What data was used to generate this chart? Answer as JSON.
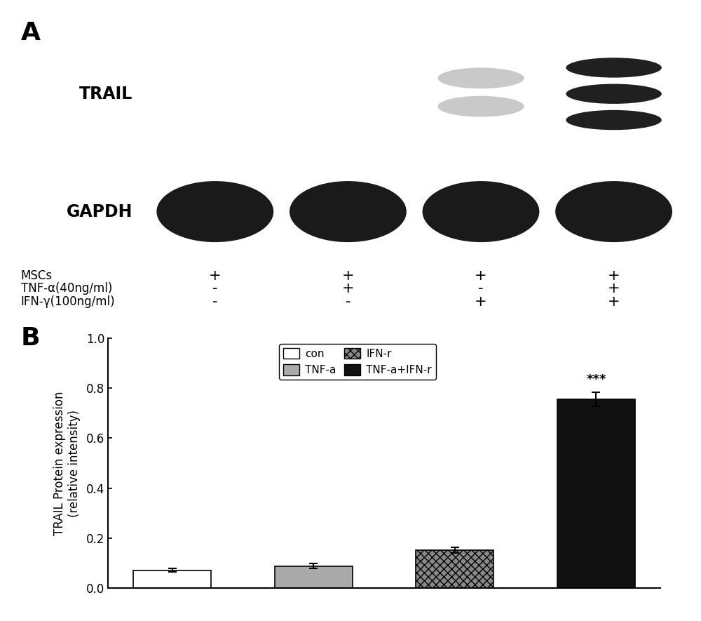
{
  "panel_A_label": "A",
  "panel_B_label": "B",
  "trail_label": "TRAIL",
  "gapdh_label": "GAPDH",
  "mscs_label": "MSCs",
  "tnf_label": "TNF-α(40ng/ml)",
  "ifn_label": "IFN-γ(100ng/ml)",
  "mscs_signs": [
    "+",
    "+",
    "+",
    "+"
  ],
  "tnf_signs": [
    "-",
    "+",
    "-",
    "+"
  ],
  "ifn_signs": [
    "-",
    "-",
    "+",
    "+"
  ],
  "bar_values": [
    0.072,
    0.088,
    0.152,
    0.755
  ],
  "bar_errors": [
    0.008,
    0.01,
    0.012,
    0.028
  ],
  "bar_labels": [
    "con",
    "TNF-a",
    "IFN-r",
    "TNF-a+IFN-r"
  ],
  "bar_colors": [
    "white",
    "#aaaaaa",
    "#888888",
    "#111111"
  ],
  "bar_hatch": [
    null,
    null,
    "xxx",
    null
  ],
  "bar_edgecolor": [
    "black",
    "black",
    "black",
    "black"
  ],
  "ylabel": "TRAIL Protein expression\n(relative intensity)",
  "ylim": [
    0,
    1.0
  ],
  "yticks": [
    0.0,
    0.2,
    0.4,
    0.6,
    0.8,
    1.0
  ],
  "significance": "***",
  "sig_bar_index": 3,
  "legend_labels": [
    "con",
    "TNF-a",
    "IFN-r",
    "TNF-a+IFN-r"
  ],
  "legend_colors": [
    "white",
    "#aaaaaa",
    "#888888",
    "#111111"
  ],
  "legend_hatch": [
    null,
    null,
    "xxx",
    null
  ],
  "bg_color": "white",
  "trail_bg": "#e0dae0",
  "gapdh_bg": "#d8d2d8",
  "lane_centers": [
    0.5,
    1.5,
    2.5,
    3.5
  ]
}
